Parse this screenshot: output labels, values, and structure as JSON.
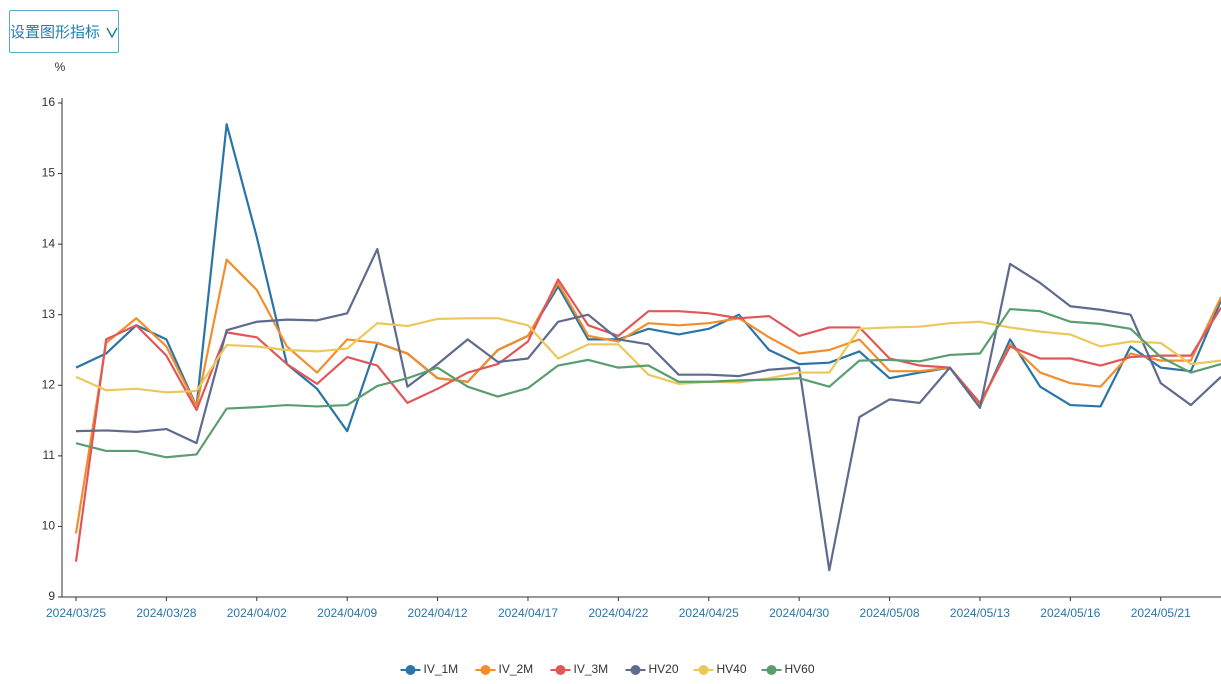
{
  "button_label": "设置图形指标",
  "chart_data": {
    "type": "line",
    "y_label": "%",
    "categories": [
      "2024/03/25",
      null,
      null,
      "2024/03/28",
      null,
      null,
      "2024/04/02",
      null,
      null,
      "2024/04/09",
      null,
      null,
      "2024/04/12",
      null,
      null,
      "2024/04/17",
      null,
      null,
      "2024/04/22",
      null,
      null,
      "2024/04/25",
      null,
      null,
      "2024/04/30",
      null,
      null,
      "2024/05/08",
      null,
      null,
      "2024/05/13",
      null,
      null,
      "2024/05/16",
      null,
      null,
      "2024/05/21",
      null,
      null
    ],
    "ylim": [
      9,
      16
    ],
    "yticks": [
      9,
      10,
      11,
      12,
      13,
      14,
      15,
      16
    ],
    "grid": false,
    "series": [
      {
        "name": "IV_1M",
        "color": "#2b74a6",
        "values": [
          12.25,
          12.45,
          12.85,
          12.65,
          11.7,
          15.7,
          14.1,
          12.3,
          11.95,
          11.35,
          12.6,
          12.45,
          12.1,
          12.05,
          12.5,
          12.7,
          13.4,
          12.65,
          12.65,
          12.8,
          12.72,
          12.8,
          13.0,
          12.5,
          12.3,
          12.32,
          12.48,
          12.1,
          12.18,
          12.25,
          11.7,
          12.65,
          11.98,
          11.72,
          11.7,
          12.55,
          12.25,
          12.2,
          13.2
        ]
      },
      {
        "name": "IV_2M",
        "color": "#f28e2b",
        "values": [
          9.9,
          12.6,
          12.95,
          12.55,
          11.7,
          13.78,
          13.35,
          12.55,
          12.18,
          12.65,
          12.6,
          12.45,
          12.1,
          12.05,
          12.5,
          12.7,
          13.45,
          12.7,
          12.62,
          12.88,
          12.85,
          12.88,
          12.95,
          12.68,
          12.45,
          12.5,
          12.65,
          12.2,
          12.2,
          12.25,
          11.72,
          12.58,
          12.18,
          12.03,
          11.98,
          12.45,
          12.35,
          12.35,
          13.25
        ]
      },
      {
        "name": "IV_3M",
        "color": "#e15759",
        "values": [
          9.5,
          12.65,
          12.85,
          12.42,
          11.65,
          12.75,
          12.68,
          12.3,
          12.02,
          12.4,
          12.28,
          11.75,
          11.95,
          12.18,
          12.3,
          12.62,
          13.5,
          12.85,
          12.7,
          13.05,
          13.05,
          13.02,
          12.95,
          12.98,
          12.7,
          12.82,
          12.82,
          12.38,
          12.28,
          12.25,
          11.75,
          12.55,
          12.38,
          12.38,
          12.28,
          12.4,
          12.42,
          12.42,
          13.1
        ]
      },
      {
        "name": "HV20",
        "color": "#5e6b8d",
        "values": [
          11.35,
          11.36,
          11.34,
          11.38,
          11.18,
          12.78,
          12.9,
          12.93,
          12.92,
          13.02,
          13.93,
          11.98,
          12.3,
          12.65,
          12.33,
          12.38,
          12.9,
          13.0,
          12.65,
          12.58,
          12.15,
          12.15,
          12.13,
          12.22,
          12.25,
          9.38,
          11.55,
          11.8,
          11.75,
          12.25,
          11.68,
          13.72,
          13.45,
          13.12,
          13.07,
          13.0,
          12.03,
          11.72,
          12.12
        ]
      },
      {
        "name": "HV40",
        "color": "#ecc85b",
        "values": [
          12.12,
          11.93,
          11.95,
          11.9,
          11.92,
          12.57,
          12.55,
          12.5,
          12.48,
          12.52,
          12.88,
          12.84,
          12.94,
          12.95,
          12.95,
          12.85,
          12.38,
          12.58,
          12.58,
          12.15,
          12.02,
          12.05,
          12.04,
          12.1,
          12.18,
          12.18,
          12.8,
          12.82,
          12.83,
          12.88,
          12.9,
          12.82,
          12.76,
          12.72,
          12.55,
          12.62,
          12.6,
          12.3,
          12.35
        ]
      },
      {
        "name": "HV60",
        "color": "#5a9e6f",
        "values": [
          11.18,
          11.07,
          11.07,
          10.98,
          11.02,
          11.67,
          11.69,
          11.72,
          11.7,
          11.72,
          11.99,
          12.1,
          12.25,
          11.98,
          11.84,
          11.96,
          12.28,
          12.36,
          12.25,
          12.28,
          12.05,
          12.05,
          12.07,
          12.08,
          12.1,
          11.98,
          12.35,
          12.36,
          12.34,
          12.43,
          12.45,
          13.08,
          13.05,
          12.9,
          12.87,
          12.8,
          12.4,
          12.18,
          12.3
        ]
      }
    ]
  }
}
